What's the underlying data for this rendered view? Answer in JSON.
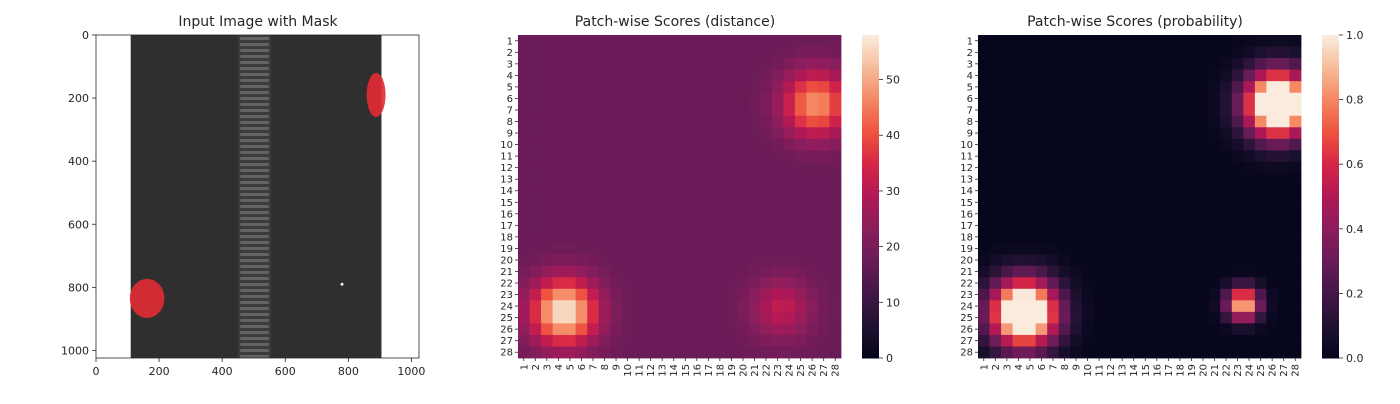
{
  "chart_data": [
    {
      "type": "image",
      "title": "Input Image with Mask",
      "xticks": [
        0,
        200,
        400,
        600,
        800,
        1000
      ],
      "yticks": [
        0,
        200,
        400,
        600,
        800,
        1000
      ],
      "xlim": [
        0,
        1024
      ],
      "ylim": [
        1024,
        0
      ],
      "image_width": 1024,
      "image_height": 1024,
      "fabric_x_range": [
        110,
        905
      ],
      "zipper_teeth_x_range": [
        450,
        555
      ],
      "mask_regions": [
        {
          "cx": 162,
          "cy": 835,
          "rx": 55,
          "ry": 62
        },
        {
          "cx": 888,
          "cy": 190,
          "rx": 30,
          "ry": 70
        }
      ],
      "mask_color": "#e02d35",
      "fabric_color": "#2f2f2f"
    },
    {
      "type": "heatmap",
      "title": "Patch-wise Scores (distance)",
      "labels": [
        "1",
        "2",
        "3",
        "4",
        "5",
        "6",
        "7",
        "8",
        "9",
        "10",
        "11",
        "12",
        "13",
        "14",
        "15",
        "16",
        "17",
        "18",
        "19",
        "20",
        "21",
        "22",
        "23",
        "24",
        "25",
        "26",
        "27",
        "28"
      ],
      "colorbar_ticks": [
        0,
        10,
        20,
        30,
        40,
        50
      ],
      "vmin": 0,
      "vmax": 58,
      "background": 18,
      "blobs": [
        {
          "row": 24.5,
          "col": 4.5,
          "sigma": 2.0,
          "peak": 40
        },
        {
          "row": 6.5,
          "col": 26.3,
          "sigma": 2.0,
          "peak": 30
        },
        {
          "row": 24.2,
          "col": 23.3,
          "sigma": 1.8,
          "peak": 14
        }
      ]
    },
    {
      "type": "heatmap",
      "title": "Patch-wise Scores (probability)",
      "labels": [
        "1",
        "2",
        "3",
        "4",
        "5",
        "6",
        "7",
        "8",
        "9",
        "10",
        "11",
        "12",
        "13",
        "14",
        "15",
        "16",
        "17",
        "18",
        "19",
        "20",
        "21",
        "22",
        "23",
        "24",
        "25",
        "26",
        "27",
        "28"
      ],
      "colorbar_ticks": [
        0.0,
        0.2,
        0.4,
        0.6,
        0.8,
        1.0
      ],
      "colorbar_tick_labels": [
        "0.0",
        "0.2",
        "0.4",
        "0.6",
        "0.8",
        "1.0"
      ],
      "vmin": 0,
      "vmax": 1,
      "background": 0.01,
      "blobs": [
        {
          "row": 24.6,
          "col": 4.5,
          "sigma": 2.0,
          "peak": 1.4
        },
        {
          "row": 6.5,
          "col": 26.5,
          "sigma": 2.0,
          "peak": 1.4
        },
        {
          "row": 23.8,
          "col": 23.5,
          "sigma": 1.0,
          "peak": 0.95
        }
      ]
    }
  ]
}
